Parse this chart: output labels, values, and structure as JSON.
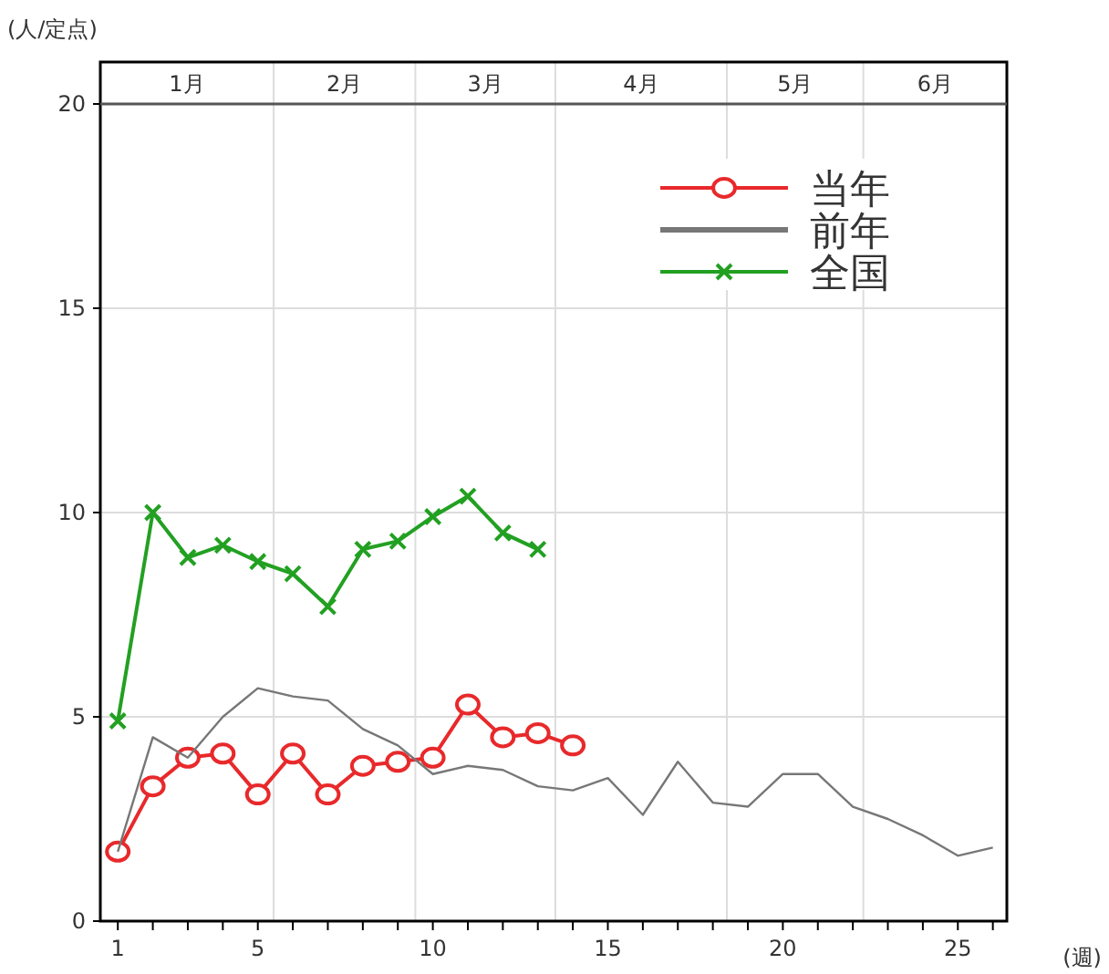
{
  "chart_data": {
    "type": "line",
    "ylabel": "(人/定点)",
    "xlabel": "(週)",
    "xlim": [
      0.5,
      26.4
    ],
    "ylim": [
      0,
      20
    ],
    "xticks": [
      1,
      {
        "value": 2,
        "label": null
      },
      {
        "value": 3,
        "label": null
      },
      {
        "value": 4,
        "label": null
      },
      5,
      {
        "value": 6,
        "label": null
      },
      {
        "value": 7,
        "label": null
      },
      {
        "value": 8,
        "label": null
      },
      {
        "value": 9,
        "label": null
      },
      10,
      {
        "value": 11,
        "label": null
      },
      {
        "value": 12,
        "label": null
      },
      {
        "value": 13,
        "label": null
      },
      {
        "value": 14,
        "label": null
      },
      15,
      {
        "value": 16,
        "label": null
      },
      {
        "value": 17,
        "label": null
      },
      {
        "value": 18,
        "label": null
      },
      {
        "value": 19,
        "label": null
      },
      20,
      {
        "value": 21,
        "label": null
      },
      {
        "value": 22,
        "label": null
      },
      {
        "value": 23,
        "label": null
      },
      {
        "value": 24,
        "label": null
      },
      25,
      {
        "value": 26,
        "label": null
      }
    ],
    "yticks": [
      0,
      5,
      10,
      15,
      20
    ],
    "annotations": [
      "1月",
      "2月",
      "3月",
      "4月",
      "5月",
      "6月"
    ],
    "ref_lines": [
      {
        "axis": "x",
        "value": 5.45,
        "color": "#dddddd"
      },
      {
        "axis": "x",
        "value": 9.5,
        "color": "#dddddd"
      },
      {
        "axis": "x",
        "value": 13.5,
        "color": "#dddddd"
      },
      {
        "axis": "x",
        "value": 18.4,
        "color": "#dddddd"
      },
      {
        "axis": "x",
        "value": 22.3,
        "color": "#dddddd"
      }
    ],
    "grid": "y",
    "legend": "top right",
    "series": [
      {
        "name": "当年",
        "color": "#e8292b",
        "marker": "circle",
        "x": [
          1,
          2,
          3,
          4,
          5,
          6,
          7,
          8,
          9,
          10,
          11,
          12,
          13,
          14
        ],
        "values": [
          1.7,
          3.3,
          4.0,
          4.1,
          3.1,
          4.1,
          3.1,
          3.8,
          3.9,
          4.0,
          5.3,
          4.5,
          4.6,
          4.3
        ]
      },
      {
        "name": "前年",
        "color": "#777777",
        "marker": "none",
        "x": [
          1,
          2,
          3,
          4,
          5,
          6,
          7,
          8,
          9,
          10,
          11,
          12,
          13,
          14,
          15,
          16,
          17,
          18,
          19,
          20,
          21,
          22,
          23,
          24,
          25,
          26
        ],
        "values": [
          1.7,
          4.5,
          4.0,
          5.0,
          5.7,
          5.5,
          5.4,
          4.7,
          4.3,
          3.6,
          3.8,
          3.7,
          3.3,
          3.2,
          3.5,
          2.6,
          3.9,
          2.9,
          2.8,
          3.6,
          3.6,
          2.8,
          2.5,
          2.1,
          1.6,
          1.8
        ]
      },
      {
        "name": "全国",
        "color": "#22a022",
        "marker": "cross",
        "x": [
          1,
          2,
          3,
          4,
          5,
          6,
          7,
          8,
          9,
          10,
          11,
          12,
          13
        ],
        "values": [
          4.9,
          10.0,
          8.9,
          9.2,
          8.8,
          8.5,
          7.7,
          9.1,
          9.3,
          9.9,
          10.4,
          9.5,
          9.1
        ]
      }
    ]
  }
}
